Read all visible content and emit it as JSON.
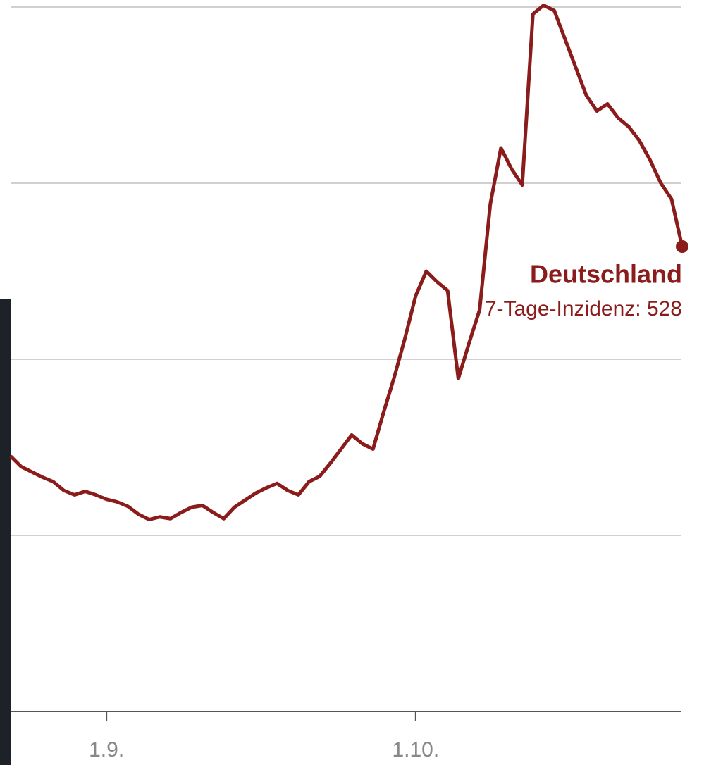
{
  "chart_data": {
    "type": "line",
    "categories": [
      null,
      null,
      null,
      null,
      null,
      null,
      null,
      null,
      null,
      "1.9.",
      null,
      null,
      null,
      null,
      null,
      null,
      null,
      null,
      null,
      null,
      null,
      null,
      null,
      null,
      null,
      null,
      null,
      null,
      null,
      null,
      null,
      null,
      null,
      null,
      null,
      null,
      null,
      null,
      "1.10.",
      null,
      null,
      null,
      null,
      null,
      null,
      null,
      null,
      null,
      null,
      null,
      null,
      null,
      null,
      null,
      null,
      null,
      null,
      null,
      null,
      null,
      null,
      null,
      null,
      null
    ],
    "series": [
      {
        "name": "Deutschland",
        "color": "#8b1c1c",
        "values": [
          290,
          278,
          272,
          266,
          261,
          251,
          246,
          250,
          246,
          241,
          238,
          233,
          224,
          218,
          221,
          219,
          226,
          232,
          234,
          226,
          219,
          232,
          240,
          248,
          254,
          259,
          251,
          246,
          261,
          267,
          282,
          298,
          314,
          304,
          298,
          340,
          380,
          424,
          472,
          500,
          488,
          478,
          378,
          418,
          456,
          576,
          640,
          616,
          598,
          792,
          802,
          796,
          764,
          732,
          700,
          682,
          690,
          674,
          664,
          648,
          626,
          600,
          582,
          528
        ]
      }
    ],
    "annotation": "7-Tage-Inzidenz: 528",
    "ylim": [
      0,
      810
    ],
    "yticks": [
      200,
      400,
      600,
      800
    ],
    "grid": true
  }
}
